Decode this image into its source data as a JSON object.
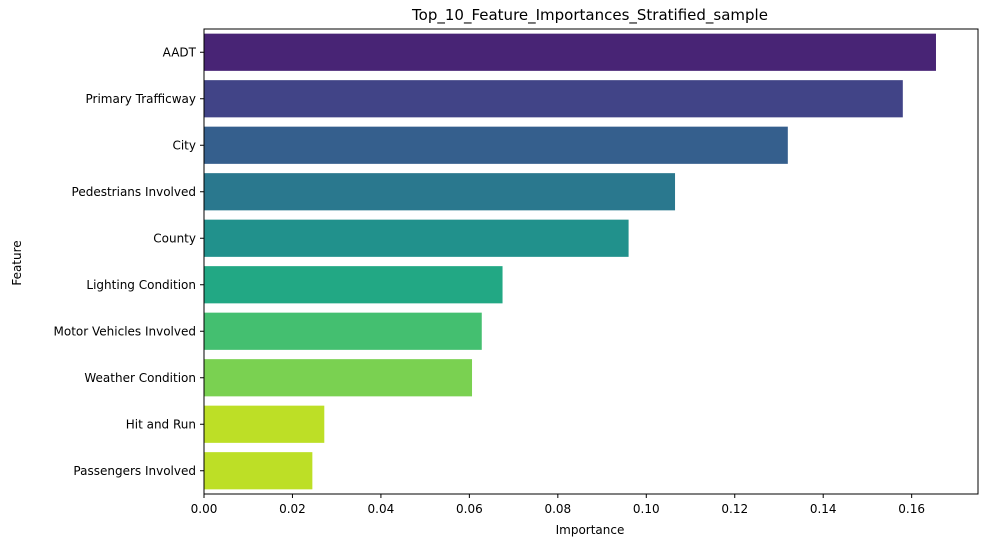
{
  "chart_data": {
    "type": "bar",
    "orientation": "horizontal",
    "title": "Top_10_Feature_Importances_Stratified_sample",
    "xlabel": "Importance",
    "ylabel": "Feature",
    "xlim": [
      0,
      0.175
    ],
    "xticks": [
      "0.00",
      "0.02",
      "0.04",
      "0.06",
      "0.08",
      "0.10",
      "0.12",
      "0.14",
      "0.16"
    ],
    "grid": false,
    "categories": [
      "AADT",
      "Primary Trafficway",
      "City",
      "Pedestrians Involved",
      "County",
      "Lighting Condition",
      "Motor Vehicles Involved",
      "Weather Condition",
      "Hit and Run",
      "Passengers Involved"
    ],
    "values": [
      0.1655,
      0.158,
      0.132,
      0.1065,
      0.096,
      0.0675,
      0.0628,
      0.0606,
      0.0272,
      0.0245
    ],
    "colors": [
      "#482475",
      "#414487",
      "#355f8d",
      "#2a788e",
      "#21918c",
      "#22a884",
      "#44bf70",
      "#7ad151",
      "#bddf26",
      "#bddf26"
    ],
    "palette": "viridis"
  }
}
